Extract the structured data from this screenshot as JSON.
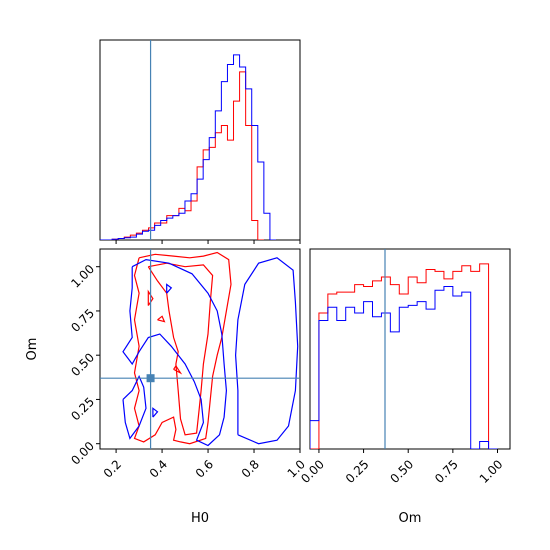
{
  "figure": {
    "type": "corner-plot",
    "parameters": [
      "H0",
      "Om"
    ],
    "truth": {
      "H0": 0.35,
      "Om": 0.37
    },
    "colors": {
      "red": "#ff0000",
      "blue": "#0000ff",
      "truth": "#4682b4"
    }
  },
  "chart_data": [
    {
      "type": "histogram",
      "panel": "H0-marginal",
      "xlim": [
        0.13,
        1.0
      ],
      "xticks": [
        0.2,
        0.4,
        0.6,
        0.8,
        1.0
      ],
      "bin_width": 0.0264,
      "series": [
        {
          "color": "#ff0000",
          "x_start": 0.13,
          "counts": [
            0,
            0,
            0.3,
            0.6,
            1.2,
            2.0,
            2.8,
            4,
            5,
            7,
            7,
            10,
            10,
            13,
            12,
            16,
            30,
            37,
            38,
            44,
            47,
            41,
            57,
            69,
            47,
            8,
            0
          ]
        },
        {
          "color": "#0000ff",
          "x_start": 0.13,
          "counts": [
            0,
            0,
            0.3,
            0.6,
            0.9,
            1.2,
            2.4,
            3.6,
            4,
            6,
            8,
            9,
            10,
            11,
            16,
            19,
            25,
            33,
            42,
            53,
            65,
            72,
            76,
            71,
            62,
            47,
            32,
            11,
            0
          ]
        }
      ]
    },
    {
      "type": "histogram",
      "panel": "Om-marginal",
      "xlim": [
        -0.05,
        1.07
      ],
      "xticks": [
        0.0,
        0.25,
        0.5,
        0.75,
        1.0
      ],
      "xtick_labels": [
        "0.00",
        "0.25",
        "0.50",
        "0.75",
        "1.00"
      ],
      "bin_width": 0.05,
      "series": [
        {
          "color": "#ff0000",
          "x_start": -0.05,
          "counts": [
            0,
            72,
            82,
            83,
            83,
            87,
            86,
            89,
            91,
            87,
            82,
            91,
            88,
            95,
            94,
            90,
            94,
            97,
            94,
            98,
            0
          ]
        },
        {
          "color": "#0000ff",
          "x_start": -0.05,
          "counts": [
            15,
            68,
            75,
            68,
            75,
            72,
            78,
            70,
            72,
            62,
            75,
            76,
            78,
            74,
            84,
            86,
            81,
            83,
            0,
            4,
            0
          ]
        }
      ]
    },
    {
      "type": "contour",
      "panel": "H0-vs-Om",
      "xlabel": "H0",
      "ylabel": "Om",
      "xlim": [
        0.13,
        1.0
      ],
      "ylim": [
        -0.03,
        1.1
      ],
      "xticks": [
        0.2,
        0.4,
        0.6,
        0.8,
        1.0
      ],
      "yticks": [
        0.0,
        0.25,
        0.5,
        0.75,
        1.0
      ],
      "ytick_labels": [
        "0.00",
        "0.25",
        "0.50",
        "0.75",
        "1.00"
      ],
      "series": [
        {
          "color": "#ff0000",
          "contours": [
            [
              [
                0.3,
                1.05
              ],
              [
                0.37,
                1.07
              ],
              [
                0.45,
                1.06
              ],
              [
                0.52,
                1.05
              ],
              [
                0.58,
                1.06
              ],
              [
                0.64,
                1.08
              ],
              [
                0.69,
                1.04
              ],
              [
                0.7,
                0.9
              ],
              [
                0.68,
                0.75
              ],
              [
                0.66,
                0.6
              ],
              [
                0.64,
                0.5
              ],
              [
                0.62,
                0.38
              ],
              [
                0.61,
                0.25
              ],
              [
                0.6,
                0.12
              ],
              [
                0.59,
                0.03
              ],
              [
                0.52,
                0.0
              ],
              [
                0.48,
                0.01
              ],
              [
                0.45,
                0.02
              ],
              [
                0.46,
                0.08
              ],
              [
                0.45,
                0.15
              ],
              [
                0.4,
                0.12
              ],
              [
                0.37,
                0.05
              ],
              [
                0.32,
                0.01
              ],
              [
                0.28,
                0.03
              ],
              [
                0.3,
                0.1
              ],
              [
                0.28,
                0.2
              ],
              [
                0.3,
                0.3
              ],
              [
                0.28,
                0.4
              ],
              [
                0.3,
                0.55
              ],
              [
                0.28,
                0.7
              ],
              [
                0.3,
                0.85
              ],
              [
                0.28,
                0.95
              ],
              [
                0.3,
                1.05
              ]
            ],
            [
              [
                0.34,
                1.0
              ],
              [
                0.42,
                1.02
              ],
              [
                0.5,
                1.0
              ],
              [
                0.58,
                1.01
              ],
              [
                0.62,
                0.95
              ],
              [
                0.61,
                0.8
              ],
              [
                0.6,
                0.62
              ],
              [
                0.58,
                0.45
              ],
              [
                0.57,
                0.3
              ],
              [
                0.56,
                0.18
              ],
              [
                0.55,
                0.06
              ],
              [
                0.5,
                0.05
              ],
              [
                0.48,
                0.14
              ],
              [
                0.47,
                0.3
              ],
              [
                0.46,
                0.45
              ],
              [
                0.47,
                0.52
              ],
              [
                0.45,
                0.6
              ],
              [
                0.43,
                0.75
              ],
              [
                0.42,
                0.85
              ],
              [
                0.38,
                0.92
              ],
              [
                0.34,
                1.0
              ]
            ],
            [
              [
                0.38,
                0.7
              ],
              [
                0.41,
                0.69
              ],
              [
                0.4,
                0.72
              ],
              [
                0.38,
                0.7
              ]
            ],
            [
              [
                0.45,
                0.42
              ],
              [
                0.48,
                0.4
              ],
              [
                0.46,
                0.44
              ],
              [
                0.45,
                0.42
              ]
            ],
            [
              [
                0.34,
                0.78
              ],
              [
                0.36,
                0.82
              ],
              [
                0.34,
                0.86
              ],
              [
                0.34,
                0.78
              ]
            ]
          ]
        },
        {
          "color": "#0000ff",
          "contours": [
            [
              [
                0.27,
                1.0
              ],
              [
                0.33,
                1.04
              ],
              [
                0.43,
                1.02
              ],
              [
                0.53,
                0.96
              ],
              [
                0.6,
                0.85
              ],
              [
                0.64,
                0.75
              ],
              [
                0.66,
                0.62
              ],
              [
                0.67,
                0.45
              ],
              [
                0.68,
                0.3
              ],
              [
                0.67,
                0.15
              ],
              [
                0.65,
                0.05
              ],
              [
                0.6,
                -0.01
              ],
              [
                0.55,
                0.02
              ],
              [
                0.58,
                0.12
              ],
              [
                0.57,
                0.25
              ],
              [
                0.54,
                0.35
              ],
              [
                0.5,
                0.45
              ],
              [
                0.44,
                0.55
              ],
              [
                0.39,
                0.62
              ],
              [
                0.34,
                0.6
              ],
              [
                0.3,
                0.52
              ],
              [
                0.27,
                0.45
              ],
              [
                0.23,
                0.52
              ],
              [
                0.27,
                0.6
              ],
              [
                0.26,
                0.75
              ],
              [
                0.27,
                0.88
              ],
              [
                0.27,
                1.0
              ]
            ],
            [
              [
                0.23,
                0.25
              ],
              [
                0.27,
                0.3
              ],
              [
                0.3,
                0.38
              ],
              [
                0.32,
                0.32
              ],
              [
                0.33,
                0.2
              ],
              [
                0.3,
                0.1
              ],
              [
                0.26,
                0.03
              ],
              [
                0.24,
                0.12
              ],
              [
                0.23,
                0.25
              ]
            ],
            [
              [
                0.73,
                0.05
              ],
              [
                0.82,
                0.0
              ],
              [
                0.9,
                0.02
              ],
              [
                0.95,
                0.1
              ],
              [
                0.98,
                0.3
              ],
              [
                0.99,
                0.55
              ],
              [
                0.98,
                0.8
              ],
              [
                0.97,
                0.98
              ],
              [
                0.9,
                1.05
              ],
              [
                0.82,
                1.02
              ],
              [
                0.76,
                0.9
              ],
              [
                0.73,
                0.7
              ],
              [
                0.72,
                0.5
              ],
              [
                0.73,
                0.3
              ],
              [
                0.73,
                0.05
              ]
            ],
            [
              [
                0.42,
                0.85
              ],
              [
                0.44,
                0.88
              ],
              [
                0.42,
                0.9
              ],
              [
                0.42,
                0.85
              ]
            ],
            [
              [
                0.36,
                0.15
              ],
              [
                0.38,
                0.18
              ],
              [
                0.36,
                0.2
              ],
              [
                0.36,
                0.15
              ]
            ]
          ]
        }
      ]
    }
  ]
}
